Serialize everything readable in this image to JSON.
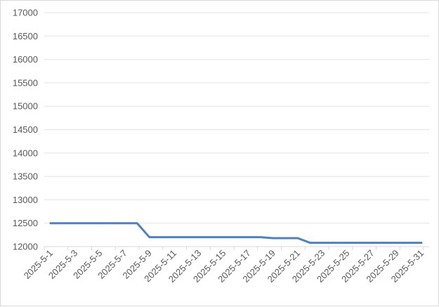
{
  "chart_data": {
    "type": "line",
    "title": "",
    "xlabel": "",
    "ylabel": "",
    "ylim": [
      12000,
      17000
    ],
    "yticks": [
      12000,
      12500,
      13000,
      13500,
      14000,
      14500,
      15000,
      15500,
      16000,
      16500,
      17000
    ],
    "grid": true,
    "legend": "none",
    "line_color": "#4f81bd",
    "x": [
      "2025-5-1",
      "2025-5-2",
      "2025-5-3",
      "2025-5-4",
      "2025-5-5",
      "2025-5-6",
      "2025-5-7",
      "2025-5-8",
      "2025-5-9",
      "2025-5-10",
      "2025-5-11",
      "2025-5-12",
      "2025-5-13",
      "2025-5-14",
      "2025-5-15",
      "2025-5-16",
      "2025-5-17",
      "2025-5-18",
      "2025-5-19",
      "2025-5-20",
      "2025-5-21",
      "2025-5-22",
      "2025-5-23",
      "2025-5-24",
      "2025-5-25",
      "2025-5-26",
      "2025-5-27",
      "2025-5-28",
      "2025-5-29",
      "2025-5-30",
      "2025-5-31"
    ],
    "xtick_labels": [
      "2025-5-1",
      "2025-5-3",
      "2025-5-5",
      "2025-5-7",
      "2025-5-9",
      "2025-5-11",
      "2025-5-13",
      "2025-5-15",
      "2025-5-17",
      "2025-5-19",
      "2025-5-21",
      "2025-5-23",
      "2025-5-25",
      "2025-5-27",
      "2025-5-29",
      "2025-5-31"
    ],
    "values": [
      12500,
      12500,
      12500,
      12500,
      12500,
      12500,
      12500,
      12500,
      12200,
      12200,
      12200,
      12200,
      12200,
      12200,
      12200,
      12200,
      12200,
      12200,
      12180,
      12180,
      12180,
      12080,
      12080,
      12080,
      12080,
      12080,
      12080,
      12080,
      12080,
      12080,
      12080
    ]
  }
}
